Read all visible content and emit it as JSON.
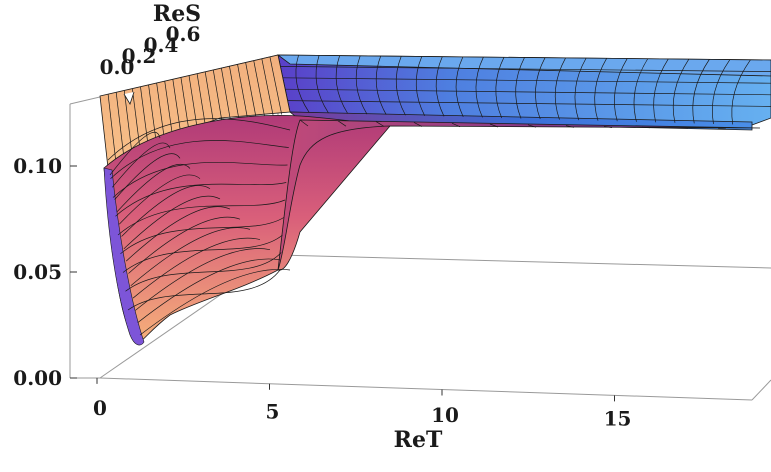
{
  "chart_data": {
    "type": "surface3d",
    "xlabel": "ReT",
    "ylabel": "ReS",
    "zlabel": "",
    "x_ticks": [
      "0",
      "5",
      "10",
      "15"
    ],
    "x_tick_values": [
      0,
      5,
      10,
      15
    ],
    "y_ticks": [
      "0.0",
      "0.2",
      "0.4",
      "0.6"
    ],
    "y_tick_values": [
      0.0,
      0.2,
      0.4,
      0.6
    ],
    "z_ticks": [
      "0.00",
      "0.05",
      "0.10"
    ],
    "z_tick_values": [
      0.0,
      0.05,
      0.1
    ],
    "xlim": [
      -0.5,
      18.5
    ],
    "ylim": [
      0.0,
      0.7
    ],
    "zlim": [
      0.0,
      0.13
    ],
    "colors": {
      "surface_low": "#f5b27c",
      "surface_mid": "#c8467a",
      "surface_high": "#5a4fd0",
      "surface_plateau": "#5fa2ea",
      "mesh": "#1a1a1a",
      "box": "#9a9a9a"
    },
    "profile": {
      "description_points": [
        {
          "ReT": 0.0,
          "value": 0.105
        },
        {
          "ReT": 0.5,
          "value": 0.03
        },
        {
          "ReT": 1.0,
          "value": 0.012
        },
        {
          "ReT": 2.0,
          "value": 0.03
        },
        {
          "ReT": 3.0,
          "value": 0.038
        },
        {
          "ReT": 4.0,
          "value": 0.045
        },
        {
          "ReT": 5.0,
          "value": 0.06
        },
        {
          "ReT": 6.0,
          "value": 0.1
        },
        {
          "ReT": 8.0,
          "value": 0.115
        },
        {
          "ReT": 12.0,
          "value": 0.12
        },
        {
          "ReT": 18.0,
          "value": 0.122
        }
      ]
    }
  }
}
